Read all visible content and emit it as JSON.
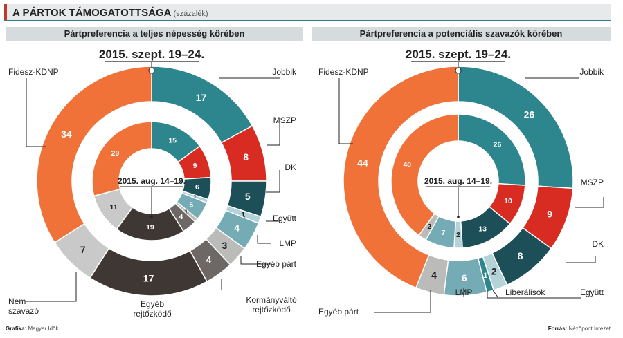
{
  "header": {
    "title": "A PÁRTOK TÁMOGATOTTSÁGA",
    "subtitle": "(százalék)"
  },
  "footer": {
    "credit_label": "Grafika:",
    "credit_value": "Magyar Idők",
    "source_label": "Forrás:",
    "source_value": "Nézőpont Intézet"
  },
  "colors": {
    "orange": "#f07238",
    "teal": "#2d858d",
    "red": "#d82c23",
    "darkteal": "#1d4f58",
    "lightblue": "#b3d3d9",
    "medblue": "#74abb4",
    "beige": "#bbbbba",
    "darkgrey": "#6d6766",
    "darkbrown": "#3f3734",
    "lightgrey": "#c9c9c9"
  },
  "chart_data": [
    {
      "type": "pie",
      "title": "Pártpreferencia a teljes népesség körében",
      "outer": {
        "label": "2015. szept. 19–24.",
        "slices": [
          {
            "name": "Jobbik",
            "value": 17,
            "color": "teal"
          },
          {
            "name": "MSZP",
            "value": 8,
            "color": "red"
          },
          {
            "name": "DK",
            "value": 5,
            "color": "darkteal"
          },
          {
            "name": "Együtt",
            "value": 1,
            "color": "lightblue"
          },
          {
            "name": "LMP",
            "value": 4,
            "color": "medblue"
          },
          {
            "name": "Egyéb párt",
            "value": 3,
            "color": "beige"
          },
          {
            "name": "Kormányváltó rejtőzködő",
            "value": 4,
            "color": "darkgrey"
          },
          {
            "name": "Egyéb rejtőzködő",
            "value": 17,
            "color": "darkbrown"
          },
          {
            "name": "Nem szavazó",
            "value": 7,
            "color": "lightgrey"
          },
          {
            "name": "Fidesz-KDNP",
            "value": 34,
            "color": "orange"
          }
        ]
      },
      "inner": {
        "label": "2015. aug. 14–19.",
        "slices": [
          {
            "name": "Jobbik",
            "value": 15,
            "color": "teal"
          },
          {
            "name": "MSZP",
            "value": 9,
            "color": "red"
          },
          {
            "name": "DK",
            "value": 6,
            "color": "darkteal"
          },
          {
            "name": "Együtt",
            "value": 1,
            "color": "lightblue"
          },
          {
            "name": "LMP",
            "value": 5,
            "color": "medblue"
          },
          {
            "name": "Egyéb párt",
            "value": 1,
            "color": "beige"
          },
          {
            "name": "Kormányváltó rejtőzködő",
            "value": 4,
            "color": "darkgrey"
          },
          {
            "name": "Egyéb rejtőzködő",
            "value": 19,
            "color": "darkbrown"
          },
          {
            "name": "Nem szavazó",
            "value": 11,
            "color": "lightgrey"
          },
          {
            "name": "Fidesz-KDNP",
            "value": 29,
            "color": "orange"
          }
        ]
      },
      "legend_labels": [
        {
          "text": "Fidesz-KDNP"
        },
        {
          "text": "Jobbik"
        },
        {
          "text": "MSZP"
        },
        {
          "text": "DK"
        },
        {
          "text": "Együtt"
        },
        {
          "text": "LMP"
        },
        {
          "text": "Egyéb párt"
        },
        {
          "text": "Kormányváltó\nrejtőzködő"
        },
        {
          "text": "Egyéb\nrejtőzködő"
        },
        {
          "text": "Nem\nszavazó"
        }
      ]
    },
    {
      "type": "pie",
      "title": "Pártpreferencia a potenciális szavazók körében",
      "outer": {
        "label": "2015. szept. 19–24.",
        "slices": [
          {
            "name": "Jobbik",
            "value": 26,
            "color": "teal"
          },
          {
            "name": "MSZP",
            "value": 9,
            "color": "red"
          },
          {
            "name": "DK",
            "value": 8,
            "color": "darkteal"
          },
          {
            "name": "Együtt",
            "value": 2,
            "color": "lightblue"
          },
          {
            "name": "Liberálisok",
            "value": 1,
            "color": "teal"
          },
          {
            "name": "LMP",
            "value": 6,
            "color": "medblue"
          },
          {
            "name": "Egyéb párt",
            "value": 4,
            "color": "beige"
          },
          {
            "name": "Fidesz-KDNP",
            "value": 44,
            "color": "orange"
          }
        ]
      },
      "inner": {
        "label": "2015. aug. 14–19.",
        "slices": [
          {
            "name": "Jobbik",
            "value": 26,
            "color": "teal"
          },
          {
            "name": "MSZP",
            "value": 10,
            "color": "red"
          },
          {
            "name": "DK",
            "value": 13,
            "color": "darkteal"
          },
          {
            "name": "Együtt",
            "value": 2,
            "color": "lightblue"
          },
          {
            "name": "LMP",
            "value": 7,
            "color": "medblue"
          },
          {
            "name": "Egyéb párt",
            "value": 2,
            "color": "beige"
          },
          {
            "name": "Fidesz-KDNP",
            "value": 40,
            "color": "orange"
          }
        ]
      },
      "legend_labels": [
        {
          "text": "Fidesz-KDNP"
        },
        {
          "text": "Jobbik"
        },
        {
          "text": "MSZP"
        },
        {
          "text": "DK"
        },
        {
          "text": "Együtt"
        },
        {
          "text": "Liberálisok"
        },
        {
          "text": "LMP"
        },
        {
          "text": "Egyéb párt"
        }
      ]
    }
  ]
}
